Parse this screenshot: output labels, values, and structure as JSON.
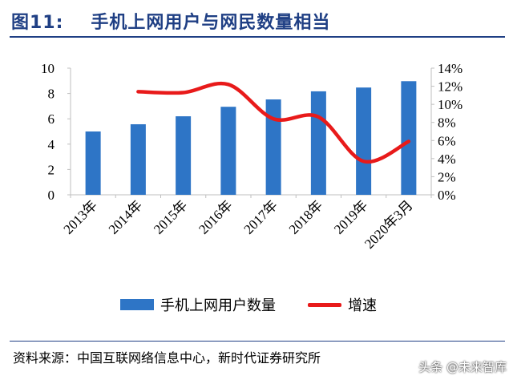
{
  "figure": {
    "label": "图11:",
    "title": "手机上网用户与网民数量相当",
    "source": "资料来源：中国互联网络信息中心，新时代证券研究所",
    "watermark": "头条 @未来智库"
  },
  "colors": {
    "bar": "#2e75c6",
    "line": "#e81a1a",
    "title": "#1f3f84"
  },
  "chart_data": {
    "type": "bar",
    "title": "",
    "categories": [
      "2013年",
      "2014年",
      "2015年",
      "2016年",
      "2017年",
      "2018年",
      "2019年",
      "2020年3月"
    ],
    "series": [
      {
        "name": "手机上网用户数量",
        "type": "bar",
        "axis": "left",
        "values": [
          5.0,
          5.57,
          6.2,
          6.95,
          7.53,
          8.17,
          8.47,
          8.97
        ]
      },
      {
        "name": "增速",
        "type": "line",
        "axis": "right",
        "unit": "%",
        "values": [
          null,
          11.4,
          11.3,
          12.2,
          8.4,
          8.6,
          3.7,
          5.9
        ]
      }
    ],
    "y_left": {
      "min": 0,
      "max": 10,
      "ticks": [
        0,
        2,
        4,
        6,
        8,
        10
      ]
    },
    "y_right": {
      "min": 0,
      "max": 14,
      "ticks": [
        "0%",
        "2%",
        "4%",
        "6%",
        "8%",
        "10%",
        "12%",
        "14%"
      ]
    },
    "grid": false,
    "legend": "bottom"
  }
}
